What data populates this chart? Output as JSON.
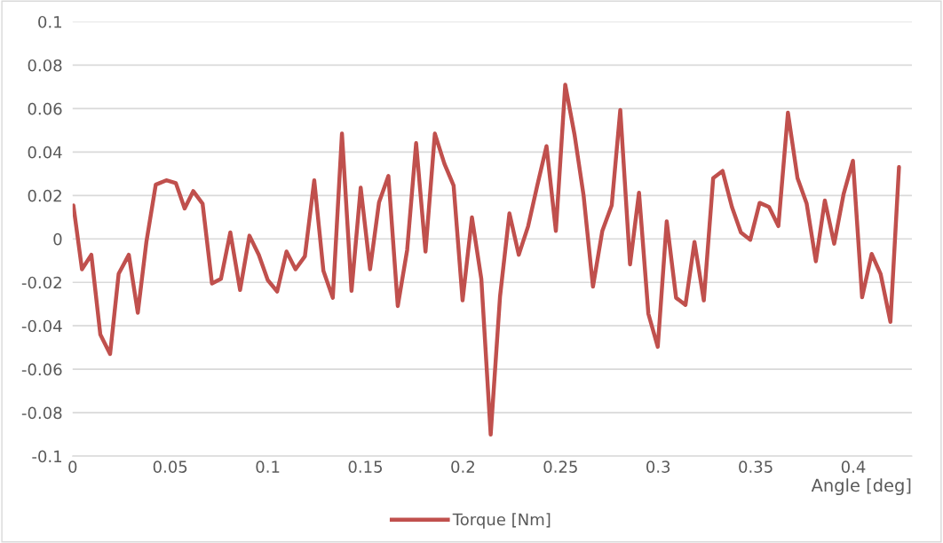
{
  "chart_data": {
    "type": "line",
    "xlabel": "Angle [deg]",
    "xlim": [
      0,
      0.43
    ],
    "xticks": [
      0,
      0.05,
      0.1,
      0.15,
      0.2,
      0.25,
      0.3,
      0.35,
      0.4
    ],
    "ylim": [
      -0.1,
      0.1
    ],
    "yticks": [
      -0.1,
      -0.08,
      -0.06,
      -0.04,
      -0.02,
      0,
      0.02,
      0.04,
      0.06,
      0.08,
      0.1
    ],
    "grid": "y",
    "legend": "bottom",
    "line_style": "solid",
    "marker": "none",
    "series": [
      {
        "name": "Torque [Nm]",
        "color": "#c0504d",
        "x": [
          0.0004,
          0.0048,
          0.0096,
          0.0142,
          0.0192,
          0.0236,
          0.0288,
          0.0334,
          0.0378,
          0.0426,
          0.048,
          0.0529,
          0.0574,
          0.0618,
          0.0666,
          0.0714,
          0.076,
          0.0808,
          0.0858,
          0.0906,
          0.0954,
          0.1,
          0.1048,
          0.1096,
          0.1142,
          0.119,
          0.1238,
          0.1285,
          0.1333,
          0.138,
          0.1429,
          0.1476,
          0.1524,
          0.157,
          0.1618,
          0.1666,
          0.1714,
          0.176,
          0.1808,
          0.1856,
          0.1905,
          0.1952,
          0.1998,
          0.2046,
          0.2094,
          0.2142,
          0.219,
          0.2238,
          0.2286,
          0.2334,
          0.238,
          0.2428,
          0.2476,
          0.2524,
          0.2572,
          0.2618,
          0.2666,
          0.2714,
          0.2762,
          0.2806,
          0.2856,
          0.2902,
          0.295,
          0.2998,
          0.3044,
          0.3092,
          0.314,
          0.3186,
          0.3234,
          0.3282,
          0.333,
          0.3378,
          0.3424,
          0.3472,
          0.352,
          0.3568,
          0.3616,
          0.3665,
          0.3714,
          0.3761,
          0.3808,
          0.3854,
          0.3902,
          0.395,
          0.3998,
          0.4045,
          0.4094,
          0.414,
          0.419,
          0.4234
        ],
        "values": [
          0.0154,
          -0.014,
          -0.0073,
          -0.044,
          -0.053,
          -0.016,
          -0.0073,
          -0.034,
          -0.0014,
          0.025,
          0.027,
          0.0257,
          0.014,
          0.022,
          0.0162,
          -0.0205,
          -0.0184,
          0.003,
          -0.0235,
          0.0015,
          -0.0073,
          -0.019,
          -0.0242,
          -0.0058,
          -0.014,
          -0.008,
          0.027,
          -0.0147,
          -0.0271,
          0.0485,
          -0.0239,
          0.0236,
          -0.014,
          0.0169,
          0.029,
          -0.0309,
          -0.0051,
          0.0441,
          -0.0058,
          0.0485,
          0.0346,
          0.0246,
          -0.0283,
          0.0099,
          -0.0184,
          -0.0901,
          -0.0264,
          0.0118,
          -0.0073,
          0.0059,
          0.0243,
          0.0427,
          0.0037,
          0.071,
          0.0478,
          0.02,
          -0.022,
          0.0037,
          0.0154,
          0.0594,
          -0.0117,
          0.0213,
          -0.0345,
          -0.0497,
          0.0081,
          -0.0271,
          -0.0304,
          -0.0014,
          -0.0283,
          0.028,
          0.0313,
          0.0147,
          0.003,
          -0.0004,
          0.0166,
          0.0147,
          0.0059,
          0.0581,
          0.028,
          0.0162,
          -0.0103,
          0.0177,
          -0.0022,
          0.0206,
          0.036,
          -0.0269,
          -0.0069,
          -0.0162,
          -0.0382,
          0.0331
        ]
      }
    ]
  }
}
